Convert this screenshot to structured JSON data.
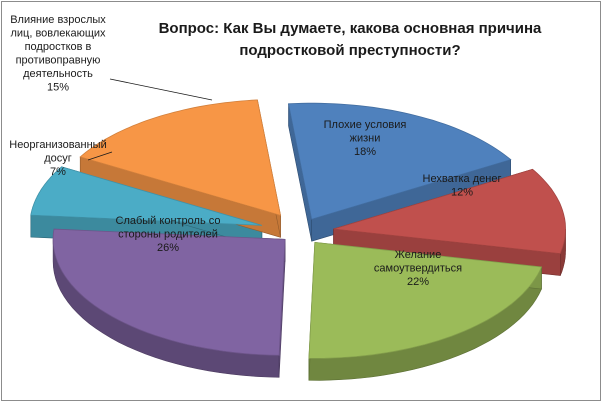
{
  "chart_data": {
    "type": "pie",
    "style": "3d-exploded",
    "title": "Вопрос: Как Вы думаете, какова основная причина подростковой преступности?",
    "title_lines": [
      "Вопрос: Как Вы думаете, какова основная причина",
      "подростковой преступности?"
    ],
    "slices": [
      {
        "label": "Плохие условия жизни",
        "label_lines": [
          "Плохие условия",
          "жизни"
        ],
        "value": 18,
        "value_label": "18%",
        "color": "#4f81bd"
      },
      {
        "label": "Нехватка денег",
        "label_lines": [
          "Нехватка денег"
        ],
        "value": 12,
        "value_label": "12%",
        "color": "#c0504d"
      },
      {
        "label": "Желание самоутвердиться",
        "label_lines": [
          "Желание",
          "самоутвердиться"
        ],
        "value": 22,
        "value_label": "22%",
        "color": "#9bbb59"
      },
      {
        "label": "Слабый контроль со стороны родителей",
        "label_lines": [
          "Слабый контроль со",
          "стороны родителей"
        ],
        "value": 26,
        "value_label": "26%",
        "color": "#8064a2"
      },
      {
        "label": "Неорганизованный досуг",
        "label_lines": [
          "Неорганизованный",
          "досуг"
        ],
        "value": 7,
        "value_label": "7%",
        "color": "#4bacc6"
      },
      {
        "label": "Влияние взрослых лиц, вовлекающих подростков в противоправную деятельность",
        "label_lines": [
          "Влияние взрослых",
          "лиц, вовлекающих",
          "подростков в",
          "противоправную",
          "деятельность"
        ],
        "value": 15,
        "value_label": "15%",
        "color": "#f79646"
      }
    ]
  }
}
